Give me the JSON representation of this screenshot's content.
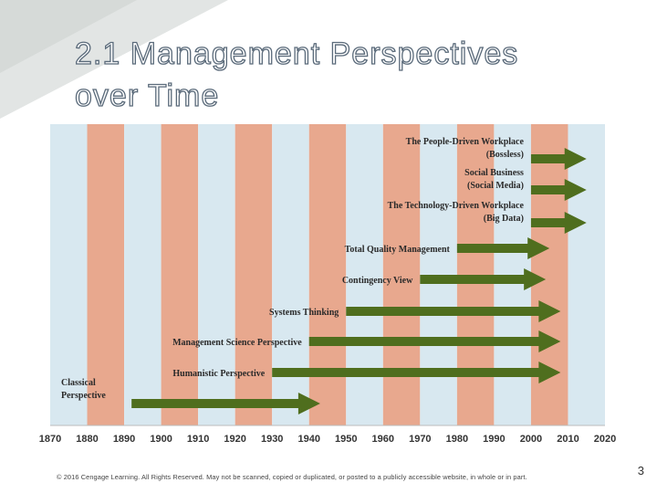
{
  "slide": {
    "title_line1": "2.1  Management Perspectives",
    "title_line2": "over Time",
    "footer": "© 2016 Cengage Learning. All Rights Reserved. May not be scanned, copied or duplicated, or posted to a publicly accessible website, in whole or in part.",
    "page_number": "3"
  },
  "colors": {
    "band_blue": "#d8e8f0",
    "band_salmon": "#e8a88e",
    "arrow_green": "#4f6e1e",
    "label_text": "#2a2a2a"
  },
  "chart_data": {
    "type": "timeline",
    "x_start": 1870,
    "x_end": 2020,
    "ticks": [
      "1870",
      "1880",
      "1890",
      "1900",
      "1910",
      "1920",
      "1930",
      "1940",
      "1950",
      "1960",
      "1970",
      "1980",
      "1990",
      "2000",
      "2010",
      "2020"
    ],
    "perspectives": [
      {
        "lines": [
          "The People-Driven Workplace",
          "(Bossless)"
        ],
        "start": 2000,
        "end": 2015
      },
      {
        "lines": [
          "Social Business",
          "(Social Media)"
        ],
        "start": 2000,
        "end": 2015
      },
      {
        "lines": [
          "The Technology-Driven Workplace",
          "(Big Data)"
        ],
        "start": 2000,
        "end": 2015
      },
      {
        "lines": [
          "Total Quality Management"
        ],
        "start": 1980,
        "end": 2005
      },
      {
        "lines": [
          "Contingency View"
        ],
        "start": 1970,
        "end": 2004
      },
      {
        "lines": [
          "Systems Thinking"
        ],
        "start": 1950,
        "end": 2008
      },
      {
        "lines": [
          "Management Science Perspective"
        ],
        "start": 1940,
        "end": 2008
      },
      {
        "lines": [
          "Humanistic Perspective"
        ],
        "start": 1930,
        "end": 2008
      },
      {
        "lines": [
          "Classical",
          "Perspective"
        ],
        "start": 1892,
        "end": 1943
      }
    ]
  }
}
